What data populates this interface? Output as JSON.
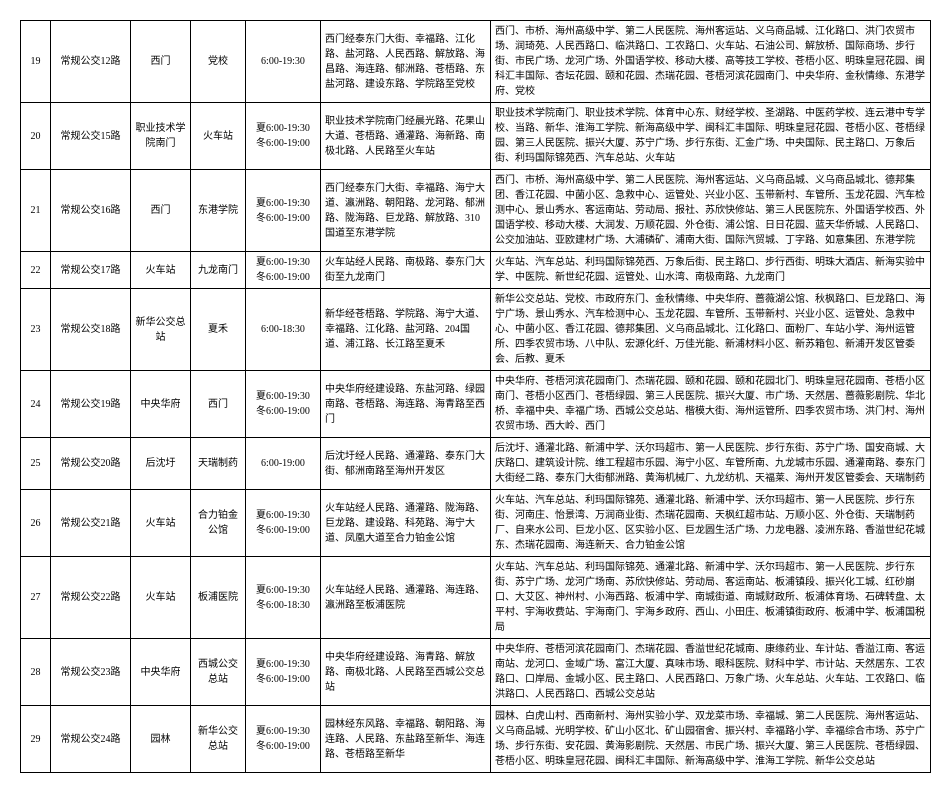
{
  "columns": [
    {
      "class": "c0"
    },
    {
      "class": "c1"
    },
    {
      "class": "c2"
    },
    {
      "class": "c3"
    },
    {
      "class": "c4"
    },
    {
      "class": "c5"
    },
    {
      "class": "c6"
    }
  ],
  "rows": [
    {
      "num": "19",
      "route": "常规公交12路",
      "start": "西门",
      "end": "党校",
      "time": "6:00-19:30",
      "via": "西门经泰东门大街、幸福路、江化路、盐河路、人民西路、解放路、海昌路、海连路、郁洲路、苍梧路、东盐河路、建设东路、学院路至党校",
      "stops": "西门、市桥、海州高级中学、第二人民医院、海州客运站、义乌商品城、江化路口、洪门农贸市场、润琦苑、人民西路口、临洪路口、工农路口、火车站、石油公司、解放桥、国际商场、步行街、市民广场、龙河广场、外国语学校、移动大楼、高等技工学校、苍梧小区、明珠皇冠花园、闽科汇丰国际、杏坛花园、颐和花园、杰瑞花园、苍梧河滨花园南门、中央华府、金秋情缘、东港学府、党校"
    },
    {
      "num": "20",
      "route": "常规公交15路",
      "start": "职业技术学院南门",
      "end": "火车站",
      "time": "夏6:00-19:30 冬6:00-19:00",
      "via": "职业技术学院南门经晨光路、花果山大道、苍梧路、通灌路、海新路、南极北路、人民路至火车站",
      "stops": "职业技术学院南门、职业技术学院、体育中心东、财经学校、圣湖路、中医药学校、连云港中专学校、当路、新华、淮海工学院、新海高级中学、闽科汇丰国际、明珠皇冠花园、苍梧小区、苍梧绿园、第三人民医院、振兴大厦、苏宁广场、步行东街、汇金广场、中央国际、民主路口、万象后街、利玛国际锦苑西、汽车总站、火车站"
    },
    {
      "num": "21",
      "route": "常规公交16路",
      "start": "西门",
      "end": "东港学院",
      "time": "夏6:00-19:30 冬6:00-19:00",
      "via": "西门经泰东门大街、幸福路、海宁大道、瀛洲路、朝阳路、龙河路、郁洲路、陇海路、巨龙路、解放路、310国道至东港学院",
      "stops": "西门、市桥、海州高级中学、第二人民医院、海州客运站、义乌商品城、义乌商品城北、德邦集团、香江花园、中菌小区、急救中心、运管处、兴业小区、玉带新村、车管所、玉龙花园、汽车检测中心、景山秀水、客运南站、劳动局、报社、苏欣快修站、第三人民医院东、外国语学校西、外国语学校、移动大楼、大润发、万顺花园、外仓街、浦公馆、日日花园、蓝天华侨城、人民路口、公交加油站、亚欧建材广场、大浦磷矿、浦南大街、国际汽贸城、丁字路、如意集团、东港学院"
    },
    {
      "num": "22",
      "route": "常规公交17路",
      "start": "火车站",
      "end": "九龙南门",
      "time": "夏6:00-19:30 冬6:00-19:00",
      "via": "火车站经人民路、南极路、泰东门大街至九龙南门",
      "stops": "火车站、汽车总站、利玛国际锦苑西、万象后街、民主路口、步行西街、明珠大酒店、新海实验中学、中医院、新世纪花园、运管处、山水湾、南极南路、九龙南门"
    },
    {
      "num": "23",
      "route": "常规公交18路",
      "start": "新华公交总站",
      "end": "夏禾",
      "time": "6:00-18:30",
      "via": "新华经苍梧路、学院路、海宁大道、幸福路、江化路、盐河路、204国道、浦江路、长江路至夏禾",
      "stops": "新华公交总站、党校、市政府东门、金秋情缘、中央华府、蔷薇湖公馆、秋枫路口、巨龙路口、海宁广场、景山秀水、汽车检测中心、玉龙花园、车管所、玉带新村、兴业小区、运管处、急救中心、中菌小区、香江花园、德邦集团、义乌商品城北、江化路口、面粉厂、车站小学、海州运管所、四季农贸市场、八中队、宏源化纤、万佳光能、新浦材料小区、新苏箱包、新浦开发区管委会、后教、夏禾"
    },
    {
      "num": "24",
      "route": "常规公交19路",
      "start": "中央华府",
      "end": "西门",
      "time": "夏6:00-19:30 冬6:00-19:00",
      "via": "中央华府经建设路、东盐河路、绿园南路、苍梧路、海连路、海青路至西门",
      "stops": "中央华府、苍梧河滨花园南门、杰瑞花园、颐和花园、颐和花园北门、明珠皇冠花园南、苍梧小区南门、苍梧小区西门、苍梧绿园、第三人民医院、振兴大厦、市广场、天然居、蔷薇影剧院、华北桥、幸福中央、幸福广场、西城公交总站、楷模大街、海州运管所、四季农贸市场、洪门村、海州农贸市场、西大岭、西门"
    },
    {
      "num": "25",
      "route": "常规公交20路",
      "start": "后沈圩",
      "end": "天瑞制药",
      "time": "6:00-19:00",
      "via": "后沈圩经人民路、通灌路、泰东门大街、郁洲南路至海州开发区",
      "stops": "后沈圩、通灌北路、新浦中学、沃尔玛超市、第一人民医院、步行东街、苏宁广场、国安商城、大庆路口、建筑设计院、维工程超市乐园、海宁小区、车管所南、九龙城市乐园、通灌南路、泰东门大街经二路、泰东门大街郁洲路、黄海机械厂、九龙纺机、天福莱、海州开发区管委会、天瑞制药"
    },
    {
      "num": "26",
      "route": "常规公交21路",
      "start": "火车站",
      "end": "合力铂金公馆",
      "time": "夏6:00-19:30 冬6:00-19:00",
      "via": "火车站经人民路、通灌路、陇海路、巨龙路、建设路、科苑路、海宁大道、凤凰大道至合力铂金公馆",
      "stops": "火车站、汽车总站、利玛国际锦苑、通灌北路、新浦中学、沃尔玛超市、第一人民医院、步行东街、河南庄、怡景湾、万润商业街、杰瑞花园南、天枫红超市站、万顺小区、外仓街、天瑞制药厂、自来水公司、巨龙小区、区实验小区、巨龙圆生活广场、力龙电器、凌洲东路、香溢世纪花城东、杰瑞花园南、海连新天、合力铂金公馆"
    },
    {
      "num": "27",
      "route": "常规公交22路",
      "start": "火车站",
      "end": "板浦医院",
      "time": "夏6:00-19:30 冬6:00-18:30",
      "via": "火车站经人民路、通灌路、海连路、瀛洲路至板浦医院",
      "stops": "火车站、汽车总站、利玛国际锦苑、通灌北路、新浦中学、沃尔玛超市、第一人民医院、步行东街、苏宁广场、龙河广场南、苏欣快修站、劳动局、客运南站、板浦镇段、振兴化工城、红砂崩口、大艾区、神州村、小海西路、板浦中学、南城街道、南城财政所、板浦体育场、石碑转盘、太平村、宇海收费站、宇海南门、宇海乡政府、西山、小田庄、板浦镇街政府、板浦中学、板浦国税局"
    },
    {
      "num": "28",
      "route": "常规公交23路",
      "start": "中央华府",
      "end": "西城公交总站",
      "time": "夏6:00-19:30 冬6:00-19:00",
      "via": "中央华府经建设路、海青路、解放路、南极北路、人民路至西城公交总站",
      "stops": "中央华府、苍梧河滨花园南门、杰瑞花园、香溢世纪花城南、康缘药业、车计站、香溢江南、客运南站、龙河口、金域广场、富江大厦、真味市场、眼科医院、财科中学、市计站、天然居东、工农路口、口岸局、金城小区、民主路口、人民西路口、万象广场、火车总站、火车站、工农路口、临洪路口、人民西路口、西城公交总站"
    },
    {
      "num": "29",
      "route": "常规公交24路",
      "start": "园林",
      "end": "新华公交总站",
      "time": "夏6:00-19:30 冬6:00-19:00",
      "via": "园林经东风路、幸福路、朝阳路、海连路、人民路、东盐路至新华、海连路、苍梧路至新华",
      "stops": "园林、白虎山村、西南新村、海州实验小学、双龙菜市场、幸福城、第二人民医院、海州客运站、义乌商品城、光明学校、矿山小区北、矿山园宿舍、振兴村、幸福路小学、幸福综合市场、苏宁广场、步行东街、安花园、黄海影剧院、天然居、市民广场、振兴大厦、第三人民医院、苍梧绿园、苍梧小区、明珠皇冠花园、闽科汇丰国际、新海高级中学、淮海工学院、新华公交总站"
    }
  ]
}
